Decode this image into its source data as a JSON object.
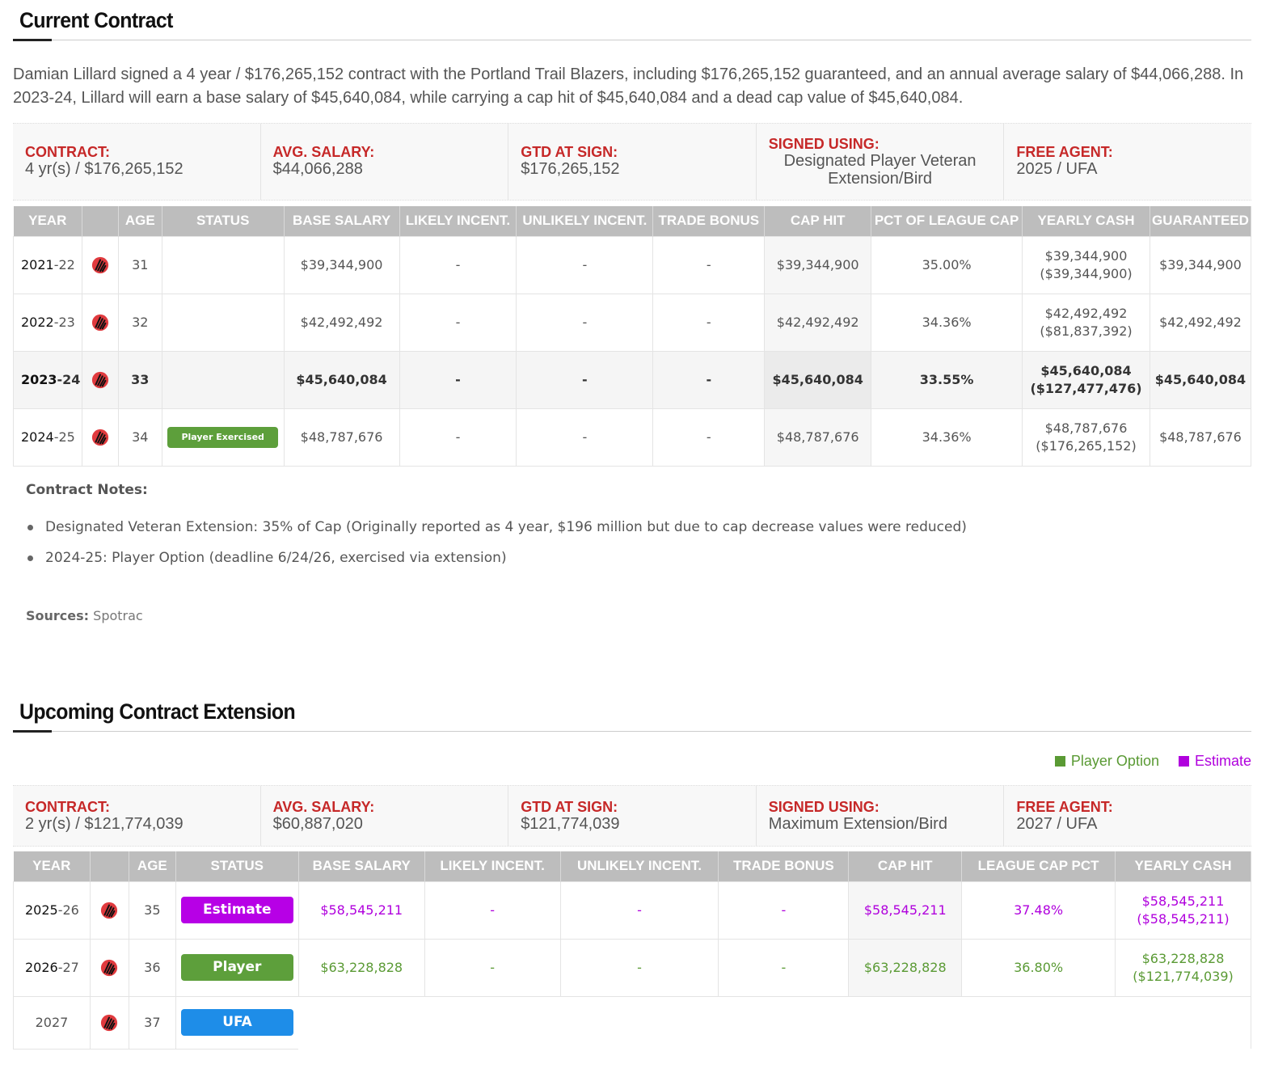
{
  "current": {
    "title": "Current Contract",
    "intro": "Damian Lillard signed a 4 year / $176,265,152 contract with the Portland Trail Blazers, including $176,265,152 guaranteed, and an annual average salary of $44,066,288. In 2023-24, Lillard will earn a base salary of $45,640,084, while carrying a cap hit of $45,640,084 and a dead cap value of $45,640,084.",
    "summary": [
      {
        "label": "CONTRACT:",
        "value": "4 yr(s) / $176,265,152"
      },
      {
        "label": "AVG. SALARY:",
        "value": "$44,066,288"
      },
      {
        "label": "GTD AT SIGN:",
        "value": "$176,265,152"
      },
      {
        "label": "SIGNED USING:",
        "value": "Designated Player Veteran Extension/Bird"
      },
      {
        "label": "FREE AGENT:",
        "value": "2025 / UFA"
      }
    ],
    "headers": [
      "YEAR",
      "",
      "AGE",
      "STATUS",
      "BASE SALARY",
      "LIKELY INCENT.",
      "UNLIKELY INCENT.",
      "TRADE BONUS",
      "CAP HIT",
      "PCT OF LEAGUE CAP",
      "YEARLY CASH",
      "GUARANTEED"
    ],
    "rows": [
      {
        "year_a": "2021",
        "year_b": "-22",
        "age": "31",
        "status": "",
        "base": "$39,344,900",
        "likely": "-",
        "unlikely": "-",
        "trade": "-",
        "cap": "$39,344,900",
        "pct": "35.00%",
        "cash": "$39,344,900",
        "cash_cum": "($39,344,900)",
        "gtd": "$39,344,900"
      },
      {
        "year_a": "2022",
        "year_b": "-23",
        "age": "32",
        "status": "",
        "base": "$42,492,492",
        "likely": "-",
        "unlikely": "-",
        "trade": "-",
        "cap": "$42,492,492",
        "pct": "34.36%",
        "cash": "$42,492,492",
        "cash_cum": "($81,837,392)",
        "gtd": "$42,492,492"
      },
      {
        "year_a": "2023",
        "year_b": "-24",
        "age": "33",
        "status": "",
        "base": "$45,640,084",
        "likely": "-",
        "unlikely": "-",
        "trade": "-",
        "cap": "$45,640,084",
        "pct": "33.55%",
        "cash": "$45,640,084",
        "cash_cum": "($127,477,476)",
        "gtd": "$45,640,084"
      },
      {
        "year_a": "2024",
        "year_b": "-25",
        "age": "34",
        "status": "Player Exercised",
        "base": "$48,787,676",
        "likely": "-",
        "unlikely": "-",
        "trade": "-",
        "cap": "$48,787,676",
        "pct": "34.36%",
        "cash": "$48,787,676",
        "cash_cum": "($176,265,152)",
        "gtd": "$48,787,676"
      }
    ],
    "notes_title": "Contract Notes:",
    "notes": [
      "Designated Veteran Extension: 35% of Cap (Originally reported as 4 year, $196 million but due to cap decrease values were reduced)",
      "2024-25: Player Option (deadline 6/24/26, exercised via extension)"
    ],
    "sources_label": "Sources:",
    "sources_value": "Spotrac"
  },
  "extension": {
    "title": "Upcoming Contract Extension",
    "legend": [
      {
        "label": "Player Option",
        "color": "#5a9a34"
      },
      {
        "label": "Estimate",
        "color": "#b000dd"
      }
    ],
    "summary": [
      {
        "label": "CONTRACT:",
        "value": "2 yr(s) / $121,774,039"
      },
      {
        "label": "AVG. SALARY:",
        "value": "$60,887,020"
      },
      {
        "label": "GTD AT SIGN:",
        "value": "$121,774,039"
      },
      {
        "label": "SIGNED USING:",
        "value": "Maximum Extension/Bird"
      },
      {
        "label": "FREE AGENT:",
        "value": "2027 / UFA"
      }
    ],
    "headers": [
      "YEAR",
      "",
      "AGE",
      "STATUS",
      "BASE SALARY",
      "LIKELY INCENT.",
      "UNLIKELY INCENT.",
      "TRADE BONUS",
      "CAP HIT",
      "LEAGUE CAP PCT",
      "YEARLY CASH"
    ],
    "rows": [
      {
        "year_a": "2025",
        "year_b": "-26",
        "age": "35",
        "status": "Estimate",
        "base": "$58,545,211",
        "likely": "-",
        "unlikely": "-",
        "trade": "-",
        "cap": "$58,545,211",
        "pct": "37.48%",
        "cash": "$58,545,211",
        "cash_cum": "($58,545,211)"
      },
      {
        "year_a": "2026",
        "year_b": "-27",
        "age": "36",
        "status": "Player",
        "base": "$63,228,828",
        "likely": "-",
        "unlikely": "-",
        "trade": "-",
        "cap": "$63,228,828",
        "pct": "36.80%",
        "cash": "$63,228,828",
        "cash_cum": "($121,774,039)"
      },
      {
        "year": "2027",
        "age": "37",
        "status": "UFA"
      }
    ]
  },
  "colors": {
    "label_red": "#c62828",
    "estimate": "#b000dd",
    "option": "#5a9a34",
    "ufa": "#1e8de8",
    "header_gray": "#bdbdbd"
  },
  "icons": {
    "team_logo": "trail-blazers-logo-icon"
  }
}
